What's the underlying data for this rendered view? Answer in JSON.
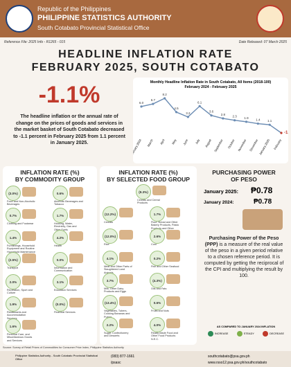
{
  "header": {
    "country": "Republic of the Philippines",
    "agency": "PHILIPPINE STATISTICS AUTHORITY",
    "office": "South Cotabato Provincial Statistical Office",
    "reference": "Reference File: 2025 Info - R1265 - 015",
    "released": "Date Released: 07 March 2025"
  },
  "title": {
    "line1": "HEADLINE INFLATION RATE",
    "line2": "FEBRUARY 2025, SOUTH COTABATO"
  },
  "headline": {
    "rate": "-1.1%",
    "text": "The headline inflation or the annual rate of change on the prices of goods and services in the market basket of South Cotabato decreased to -1.1 percent in February 2025 from 1.1 percent in January 2025."
  },
  "chart_data": {
    "type": "line",
    "title": "Monthly Headline Inflation Rate in South Cotabato, All Items (2018-100)",
    "subtitle": "February 2024 - February 2025",
    "categories": [
      "February 2024",
      "March",
      "April",
      "May",
      "June",
      "July",
      "August",
      "September",
      "October",
      "November",
      "December",
      "January 2025",
      "February"
    ],
    "values": [
      6.0,
      6.7,
      8.2,
      4.5,
      3.2,
      6.1,
      3.6,
      2.8,
      2.3,
      1.9,
      1.4,
      1.1,
      -1.1
    ],
    "value_labels": [
      "6.0",
      "6.7",
      "8.2",
      "4.5",
      "3.2",
      "6.1",
      "3.6",
      "2.8",
      "2.3",
      "1.9",
      "1.4",
      "1.1",
      "-1.1"
    ],
    "color": "#6b8cb3"
  },
  "commodity": {
    "title": "INFLATION RATE (%)",
    "subtitle": "BY COMMODITY GROUP",
    "items": [
      {
        "value": "(3.0%)",
        "name": "Food and Non-Alcoholic Beverages"
      },
      {
        "value": "0.6%",
        "name": "Alcoholic Beverages and Tobacco"
      },
      {
        "value": "0.7%",
        "name": "Clothing and Footwear"
      },
      {
        "value": "1.7%",
        "name": "Housing, Water, Electricity, Gas and Other Fuels"
      },
      {
        "value": "1.4%",
        "name": "Furnishings, Household Equipment and Routine Household Maintenance"
      },
      {
        "value": "4.2%",
        "name": "Health"
      },
      {
        "value": "(2.5%)",
        "name": "Transport"
      },
      {
        "value": "0.0%",
        "name": "Information and Communication"
      },
      {
        "value": "2.0%",
        "name": "Recreation, Sport and Culture"
      },
      {
        "value": "3.1%",
        "name": "Education Services"
      },
      {
        "value": "1.9%",
        "name": "Restaurants and Accommodation Services"
      },
      {
        "value": "(0.0%)",
        "name": "Financial Services"
      },
      {
        "value": "1.6%",
        "name": "Personal Care, and Miscellaneous Goods and Services"
      }
    ]
  },
  "food": {
    "title": "INFLATION RATE (%)",
    "subtitle": "BY SELECTED FOOD GROUP",
    "items": [
      {
        "value": "(9.3%)",
        "name": "Cereals and Cereal Products"
      },
      {
        "value": "(12.2%)",
        "name": "Cereals"
      },
      {
        "value": "1.7%",
        "name": "Flour, Bread and Other Bakery Products, Pasta Products and Other Cereals"
      },
      {
        "value": "(12.0%)",
        "name": "Rice"
      },
      {
        "value": "2.6%",
        "name": "Corn"
      },
      {
        "value": "4.1%",
        "name": "Meat and Other Parts of Slaughtered Land Animals"
      },
      {
        "value": "0.2%",
        "name": "Fish and Other Seafood"
      },
      {
        "value": "3.7%",
        "name": "Milk, Other Dairy Products and Eggs"
      },
      {
        "value": "(4.3%)",
        "name": "Oils and Fats"
      },
      {
        "value": "(13.4%)",
        "name": "Vegetables, Tubers, Cooking Bananas and Pulses"
      },
      {
        "value": "0.6%",
        "name": "Fruits and Nuts"
      },
      {
        "value": "2.2%",
        "name": "Sugar, Confectionery and Desserts"
      },
      {
        "value": "4.0%",
        "name": "Ready-Made Food and Other Food Products N.E.C."
      }
    ]
  },
  "ppp": {
    "title1": "PURCHASING POWER",
    "title2": "OF PESO",
    "rows": [
      {
        "label": "January 2025:",
        "value": "₱0.78"
      },
      {
        "label": "January 2024:",
        "value": "₱0.78"
      }
    ],
    "term": "Purchasing Power of the Peso (PPP)",
    "text": "is a measure of the real value of the peso in a given period relative to a chosen reference period. It is computed by getting the reciprocal of the CPI and multiplying the result by 100."
  },
  "legend": {
    "title": "AS COMPARED TO JANUARY 2024 INFLATION",
    "items": [
      "INCREASE",
      "STEADY",
      "DECREASE"
    ]
  },
  "footer": {
    "source": "Source: Survey of Retail Prices of Commodities for Consumer Price Index, Philippine Statistics Authority",
    "address": "Philippine Statistics Authority - South Cotabato Provincial Statistical Office",
    "phone": "(083) 877-1661",
    "social": "/psasc",
    "email": "southcotabato@psa.gov.ph",
    "web": "www.rsso12.psa.gov.ph/southcotabato"
  }
}
